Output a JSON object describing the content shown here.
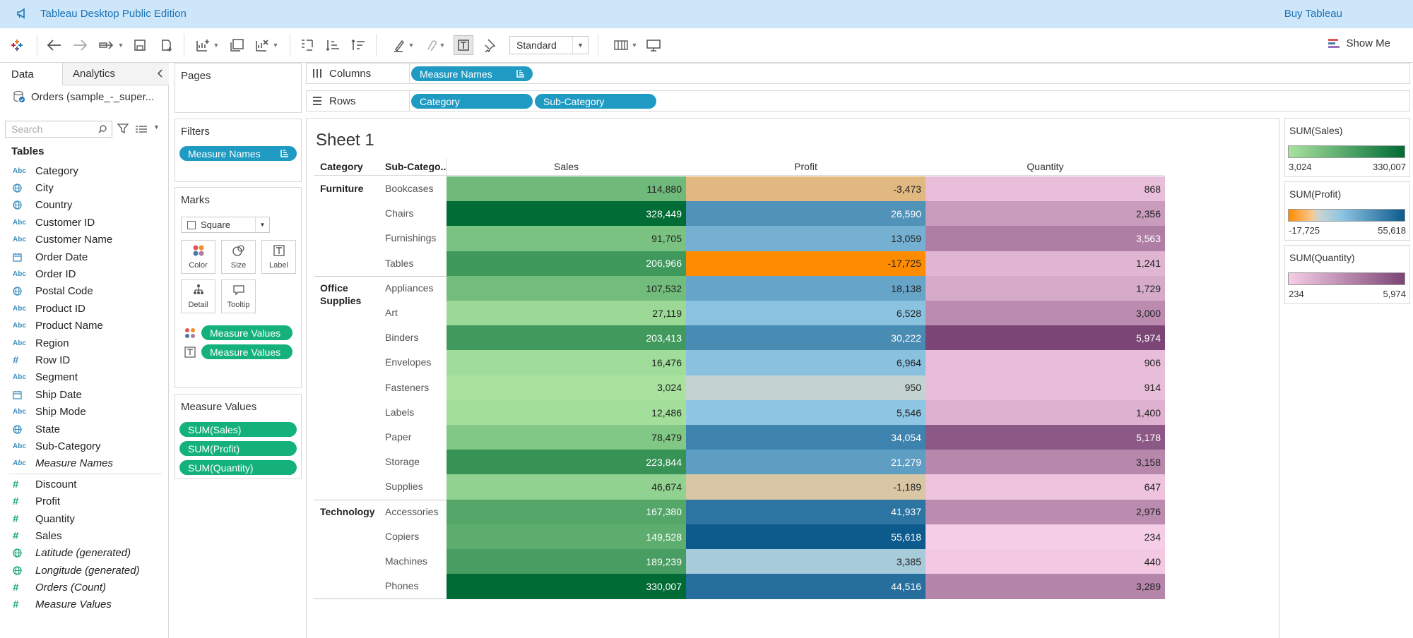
{
  "app": {
    "title": "Tableau Desktop Public Edition",
    "buy_label": "Buy Tableau"
  },
  "toolbar": {
    "mark_size_select": "Standard",
    "show_me_label": "Show Me"
  },
  "data_pane": {
    "tab_data": "Data",
    "tab_analytics": "Analytics",
    "datasource": "Orders (sample_-_super...",
    "search_placeholder": "Search",
    "tables_heading": "Tables",
    "dimensions": [
      {
        "type": "abc",
        "name": "Category"
      },
      {
        "type": "geo",
        "name": "City"
      },
      {
        "type": "geo",
        "name": "Country"
      },
      {
        "type": "abc",
        "name": "Customer ID"
      },
      {
        "type": "abc",
        "name": "Customer Name"
      },
      {
        "type": "date",
        "name": "Order Date"
      },
      {
        "type": "abc",
        "name": "Order ID"
      },
      {
        "type": "geo",
        "name": "Postal Code"
      },
      {
        "type": "abc",
        "name": "Product ID"
      },
      {
        "type": "abc",
        "name": "Product Name"
      },
      {
        "type": "abc",
        "name": "Region"
      },
      {
        "type": "hash",
        "name": "Row ID"
      },
      {
        "type": "abc",
        "name": "Segment"
      },
      {
        "type": "date",
        "name": "Ship Date"
      },
      {
        "type": "abc",
        "name": "Ship Mode"
      },
      {
        "type": "geo",
        "name": "State"
      },
      {
        "type": "abc",
        "name": "Sub-Category"
      },
      {
        "type": "abc",
        "name": "Measure Names",
        "italic": true
      }
    ],
    "measures": [
      {
        "type": "hash",
        "name": "Discount"
      },
      {
        "type": "hash",
        "name": "Profit"
      },
      {
        "type": "hash",
        "name": "Quantity"
      },
      {
        "type": "hash",
        "name": "Sales"
      },
      {
        "type": "geo",
        "name": "Latitude (generated)",
        "italic": true
      },
      {
        "type": "geo",
        "name": "Longitude (generated)",
        "italic": true
      },
      {
        "type": "hash",
        "name": "Orders (Count)",
        "italic": true
      },
      {
        "type": "hash",
        "name": "Measure Values",
        "italic": true
      }
    ]
  },
  "cards": {
    "pages_title": "Pages",
    "filters_title": "Filters",
    "filters_pill": "Measure Names",
    "marks_title": "Marks",
    "marks_type": "Square",
    "mark_buttons": [
      "Color",
      "Size",
      "Label",
      "Detail",
      "Tooltip"
    ],
    "marks_pills": [
      "Measure Values",
      "Measure Values"
    ],
    "measure_values_title": "Measure Values",
    "measure_values_pills": [
      "SUM(Sales)",
      "SUM(Profit)",
      "SUM(Quantity)"
    ]
  },
  "shelves": {
    "columns_label": "Columns",
    "columns_pills": [
      "Measure Names"
    ],
    "rows_label": "Rows",
    "rows_pills": [
      "Category",
      "Sub-Category"
    ]
  },
  "sheet": {
    "title": "Sheet 1",
    "header_category": "Category",
    "header_subcategory": "Sub-Catego..",
    "measures": [
      "Sales",
      "Profit",
      "Quantity"
    ],
    "colors": {
      "sales_low": "#a8e29e",
      "sales_high": "#006b34",
      "profit_neg": "#ff8c00",
      "profit_mid": "#cfd4cd",
      "profit_pos": "#0d5a8c",
      "qty_low": "#f6cde6",
      "qty_high": "#7b4575"
    },
    "groups": [
      {
        "category": "Furniture",
        "rows": [
          {
            "sub": "Bookcases",
            "sales": "114,880",
            "profit": "-3,473",
            "quantity": "868",
            "s": 114880,
            "p": -3473,
            "q": 868
          },
          {
            "sub": "Chairs",
            "sales": "328,449",
            "profit": "26,590",
            "quantity": "2,356",
            "s": 328449,
            "p": 26590,
            "q": 2356
          },
          {
            "sub": "Furnishings",
            "sales": "91,705",
            "profit": "13,059",
            "quantity": "3,563",
            "s": 91705,
            "p": 13059,
            "q": 3563
          },
          {
            "sub": "Tables",
            "sales": "206,966",
            "profit": "-17,725",
            "quantity": "1,241",
            "s": 206966,
            "p": -17725,
            "q": 1241
          }
        ]
      },
      {
        "category": "Office Supplies",
        "rows": [
          {
            "sub": "Appliances",
            "sales": "107,532",
            "profit": "18,138",
            "quantity": "1,729",
            "s": 107532,
            "p": 18138,
            "q": 1729
          },
          {
            "sub": "Art",
            "sales": "27,119",
            "profit": "6,528",
            "quantity": "3,000",
            "s": 27119,
            "p": 6528,
            "q": 3000
          },
          {
            "sub": "Binders",
            "sales": "203,413",
            "profit": "30,222",
            "quantity": "5,974",
            "s": 203413,
            "p": 30222,
            "q": 5974
          },
          {
            "sub": "Envelopes",
            "sales": "16,476",
            "profit": "6,964",
            "quantity": "906",
            "s": 16476,
            "p": 6964,
            "q": 906
          },
          {
            "sub": "Fasteners",
            "sales": "3,024",
            "profit": "950",
            "quantity": "914",
            "s": 3024,
            "p": 950,
            "q": 914
          },
          {
            "sub": "Labels",
            "sales": "12,486",
            "profit": "5,546",
            "quantity": "1,400",
            "s": 12486,
            "p": 5546,
            "q": 1400
          },
          {
            "sub": "Paper",
            "sales": "78,479",
            "profit": "34,054",
            "quantity": "5,178",
            "s": 78479,
            "p": 34054,
            "q": 5178
          },
          {
            "sub": "Storage",
            "sales": "223,844",
            "profit": "21,279",
            "quantity": "3,158",
            "s": 223844,
            "p": 21279,
            "q": 3158
          },
          {
            "sub": "Supplies",
            "sales": "46,674",
            "profit": "-1,189",
            "quantity": "647",
            "s": 46674,
            "p": -1189,
            "q": 647
          }
        ]
      },
      {
        "category": "Technology",
        "rows": [
          {
            "sub": "Accessories",
            "sales": "167,380",
            "profit": "41,937",
            "quantity": "2,976",
            "s": 167380,
            "p": 41937,
            "q": 2976
          },
          {
            "sub": "Copiers",
            "sales": "149,528",
            "profit": "55,618",
            "quantity": "234",
            "s": 149528,
            "p": 55618,
            "q": 234
          },
          {
            "sub": "Machines",
            "sales": "189,239",
            "profit": "3,385",
            "quantity": "440",
            "s": 189239,
            "p": 3385,
            "q": 440
          },
          {
            "sub": "Phones",
            "sales": "330,007",
            "profit": "44,516",
            "quantity": "3,289",
            "s": 330007,
            "p": 44516,
            "q": 3289
          }
        ]
      }
    ]
  },
  "legends": [
    {
      "title": "SUM(Sales)",
      "min": "3,024",
      "max": "330,007",
      "gradient": "linear-gradient(to right,#a8e29e,#006b34)"
    },
    {
      "title": "SUM(Profit)",
      "min": "-17,725",
      "max": "55,618",
      "gradient": "linear-gradient(to right,#ff8c00 0%,#f7c98f 20%,#cfd4cd 25%,#8fc6e3 45%,#0d5a8c 100%)"
    },
    {
      "title": "SUM(Quantity)",
      "min": "234",
      "max": "5,974",
      "gradient": "linear-gradient(to right,#f6cde6,#7b4575)"
    }
  ]
}
